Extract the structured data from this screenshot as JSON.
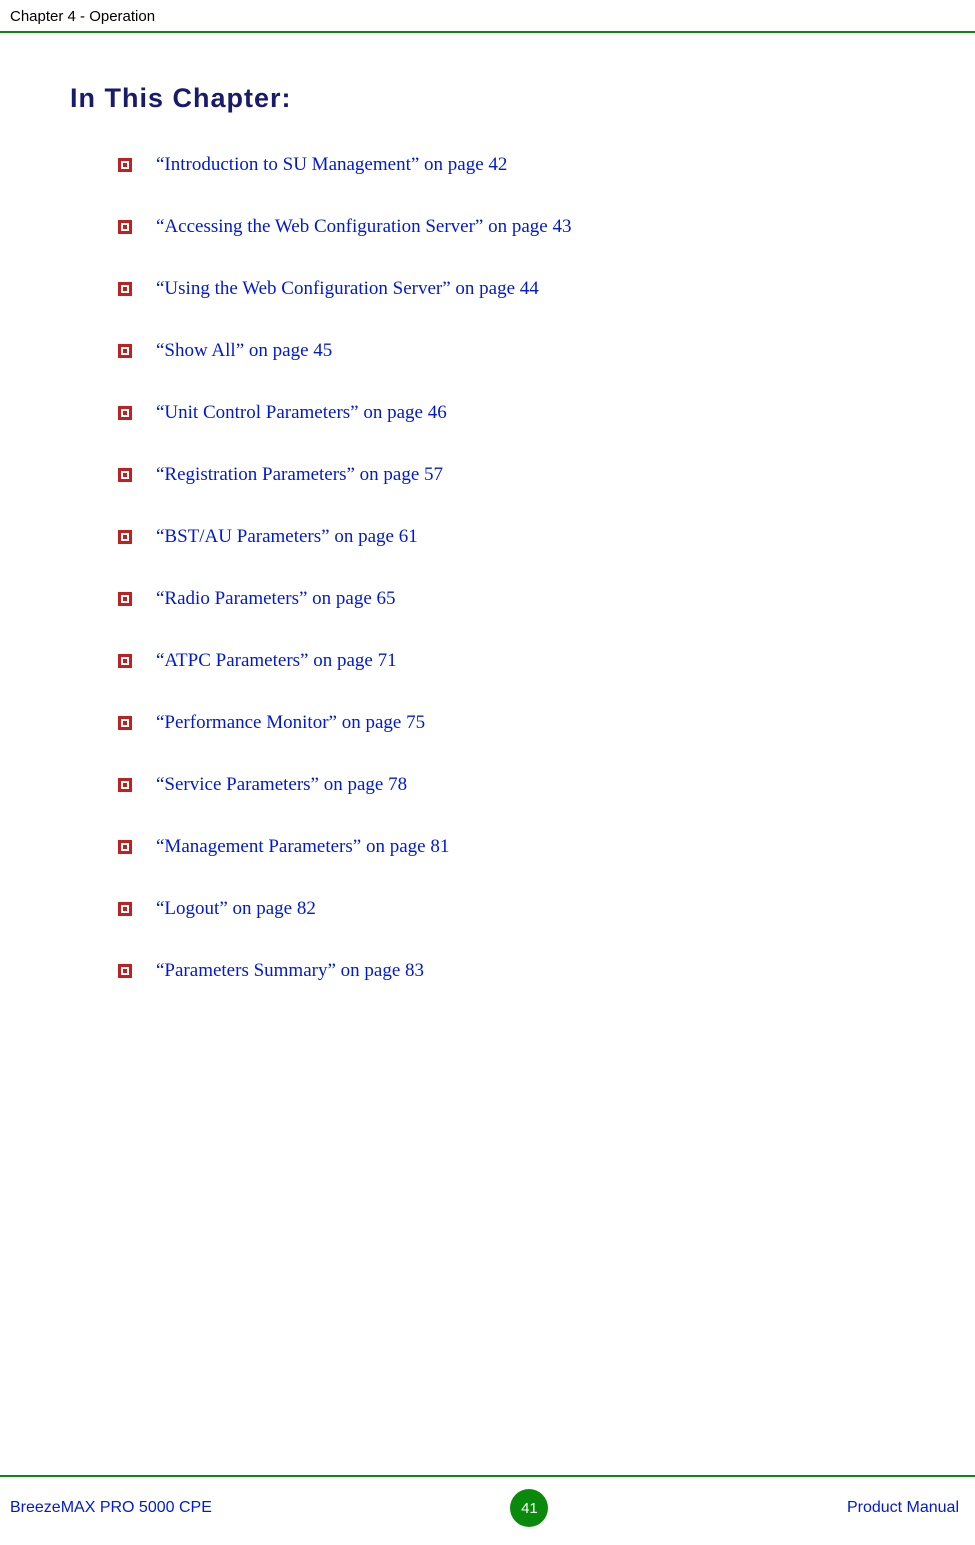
{
  "header": {
    "chapter_label": "Chapter 4 - Operation"
  },
  "title": "In This Chapter:",
  "toc": [
    {
      "text": "“Introduction to SU Management” on page 42"
    },
    {
      "text": "“Accessing the Web Configuration Server” on page 43"
    },
    {
      "text": "“Using the Web Configuration Server” on page 44"
    },
    {
      "text": "“Show All” on page 45"
    },
    {
      "text": "“Unit Control Parameters” on page 46"
    },
    {
      "text": "“Registration Parameters” on page 57"
    },
    {
      "text": "“BST/AU Parameters” on page 61"
    },
    {
      "text": "“Radio Parameters” on page 65"
    },
    {
      "text": "“ATPC Parameters” on page 71"
    },
    {
      "text": "“Performance Monitor” on page 75"
    },
    {
      "text": "“Service Parameters” on page 78"
    },
    {
      "text": "“Management Parameters” on page 81"
    },
    {
      "text": "“Logout” on page 82"
    },
    {
      "text": "“Parameters Summary” on page 83"
    }
  ],
  "footer": {
    "product": "BreezeMAX PRO 5000 CPE",
    "page_number": "41",
    "doc_label": "Product Manual"
  },
  "colors": {
    "rule_green": "#0a8a0a",
    "link_blue": "#0018d8",
    "title_navy": "#1a1a6b",
    "bullet_red": "#c02020",
    "badge_green": "#0a8a0a"
  }
}
